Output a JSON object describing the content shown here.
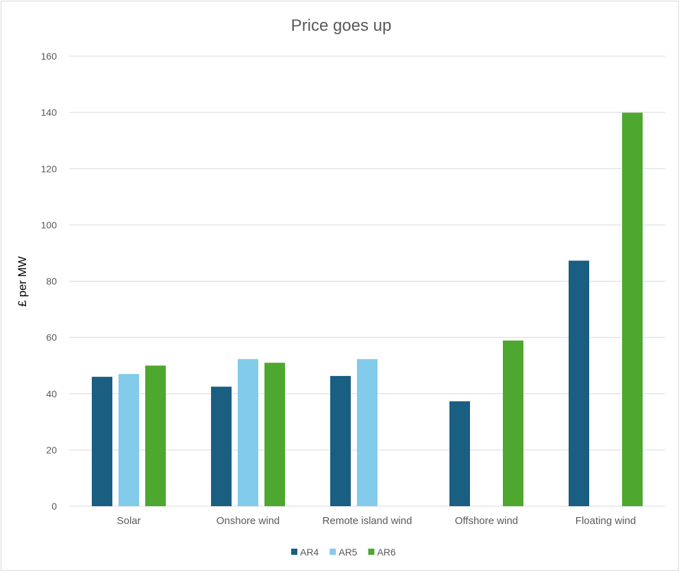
{
  "chart_data": {
    "type": "bar",
    "title": "Price goes up",
    "ylabel": "£ per MW",
    "xlabel": "",
    "ylim": [
      0,
      160
    ],
    "yticks": [
      0,
      20,
      40,
      60,
      80,
      100,
      120,
      140,
      160
    ],
    "categories": [
      "Solar",
      "Onshore wind",
      "Remote island wind",
      "Offshore wind",
      "Floating wind"
    ],
    "series": [
      {
        "name": "AR4",
        "color": "#1a5e82",
        "values": [
          46,
          42.5,
          46.3,
          37.3,
          87.3
        ]
      },
      {
        "name": "AR5",
        "color": "#83cbeb",
        "values": [
          47,
          52.3,
          52.3,
          null,
          null
        ]
      },
      {
        "name": "AR6",
        "color": "#4ea72e",
        "values": [
          50,
          51,
          null,
          58.9,
          139.9
        ]
      }
    ],
    "grid": true,
    "legend": "bottom"
  }
}
